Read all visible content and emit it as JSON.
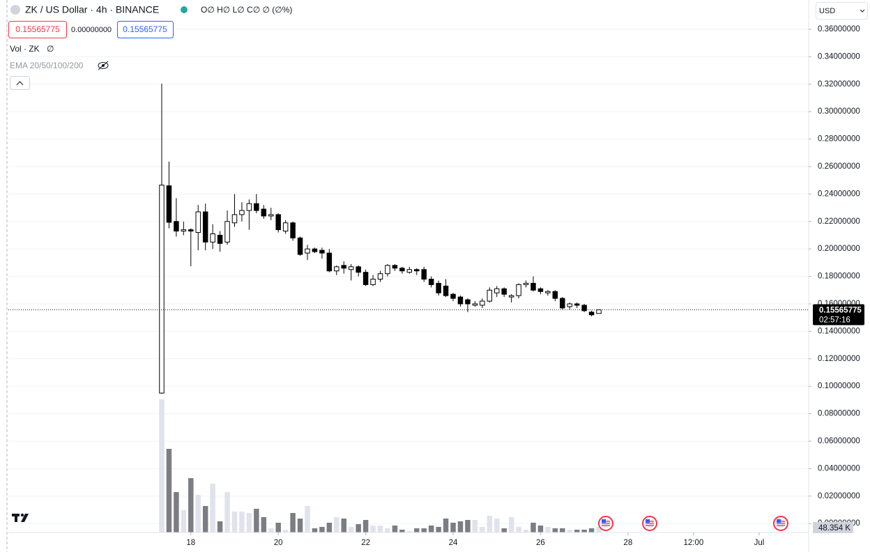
{
  "header": {
    "symbol": "ZK / US Dollar · 4h · BINANCE",
    "ohlc": "O∅ H∅ L∅ C∅ ∅ (∅%)",
    "spread": "0.00000000",
    "volume_title": "Vol · ZK",
    "volume_value": "∅",
    "indicator": "EMA 20/50/100/200",
    "currency": "USD",
    "countdown": "02:57:16",
    "volume_label": "48.354 K"
  },
  "chart_data": {
    "type": "candlestick",
    "last_price": 0.15565775,
    "x": [
      0,
      1,
      2,
      3,
      4,
      5,
      6,
      7,
      8,
      9,
      10,
      11,
      12,
      13,
      14,
      15,
      16,
      17,
      18,
      19,
      20,
      21,
      22,
      23,
      24,
      25,
      26,
      27,
      28,
      29,
      30,
      31,
      32,
      33,
      34,
      35,
      36,
      37,
      38,
      39,
      40,
      41,
      42,
      43,
      44,
      45,
      46,
      47,
      48,
      49,
      50,
      51,
      52,
      53,
      54,
      55,
      56,
      57,
      58,
      59,
      60
    ],
    "open": [
      0.095,
      0.246,
      0.22,
      0.213,
      0.214,
      0.212,
      0.227,
      0.205,
      0.21,
      0.205,
      0.219,
      0.225,
      0.228,
      0.233,
      0.229,
      0.224,
      0.225,
      0.213,
      0.219,
      0.208,
      0.197,
      0.2,
      0.199,
      0.197,
      0.184,
      0.188,
      0.185,
      0.187,
      0.183,
      0.174,
      0.178,
      0.182,
      0.188,
      0.186,
      0.183,
      0.185,
      0.185,
      0.178,
      0.175,
      0.173,
      0.167,
      0.165,
      0.163,
      0.159,
      0.159,
      0.162,
      0.168,
      0.171,
      0.165,
      0.166,
      0.174,
      0.175,
      0.171,
      0.168,
      0.169,
      0.164,
      0.158,
      0.16,
      0.159,
      0.154,
      0.153
    ],
    "high": [
      0.3204,
      0.2636,
      0.237,
      0.22,
      0.215,
      0.232,
      0.233,
      0.218,
      0.213,
      0.228,
      0.24,
      0.234,
      0.236,
      0.24,
      0.232,
      0.23,
      0.226,
      0.221,
      0.22,
      0.209,
      0.203,
      0.201,
      0.201,
      0.2,
      0.188,
      0.191,
      0.189,
      0.188,
      0.185,
      0.181,
      0.184,
      0.189,
      0.189,
      0.187,
      0.187,
      0.186,
      0.187,
      0.18,
      0.177,
      0.178,
      0.168,
      0.166,
      0.164,
      0.162,
      0.164,
      0.172,
      0.173,
      0.172,
      0.167,
      0.175,
      0.177,
      0.18,
      0.172,
      0.17,
      0.17,
      0.165,
      0.161,
      0.161,
      0.16,
      0.155,
      0.1558
    ],
    "low": [
      0.0945,
      0.215,
      0.209,
      0.21,
      0.1874,
      0.199,
      0.199,
      0.2,
      0.198,
      0.203,
      0.216,
      0.22,
      0.214,
      0.226,
      0.222,
      0.221,
      0.212,
      0.211,
      0.206,
      0.195,
      0.192,
      0.197,
      0.193,
      0.183,
      0.181,
      0.182,
      0.177,
      0.18,
      0.173,
      0.173,
      0.176,
      0.18,
      0.184,
      0.182,
      0.182,
      0.181,
      0.176,
      0.172,
      0.166,
      0.165,
      0.162,
      0.158,
      0.154,
      0.158,
      0.157,
      0.161,
      0.165,
      0.165,
      0.161,
      0.164,
      0.172,
      0.169,
      0.167,
      0.166,
      0.162,
      0.156,
      0.156,
      0.157,
      0.154,
      0.151,
      0.153
    ],
    "close": [
      0.2465,
      0.2194,
      0.213,
      0.214,
      0.213,
      0.227,
      0.205,
      0.211,
      0.204,
      0.22,
      0.225,
      0.228,
      0.233,
      0.228,
      0.224,
      0.225,
      0.214,
      0.219,
      0.208,
      0.196,
      0.2,
      0.198,
      0.197,
      0.184,
      0.187,
      0.186,
      0.187,
      0.183,
      0.174,
      0.178,
      0.182,
      0.188,
      0.186,
      0.184,
      0.185,
      0.184,
      0.178,
      0.174,
      0.168,
      0.166,
      0.164,
      0.16,
      0.16,
      0.16,
      0.162,
      0.17,
      0.171,
      0.167,
      0.166,
      0.174,
      0.175,
      0.17,
      0.169,
      0.169,
      0.164,
      0.157,
      0.16,
      0.159,
      0.155,
      0.152,
      0.15565775
    ],
    "volume": [
      1146,
      720,
      348,
      192,
      468,
      324,
      228,
      420,
      96,
      348,
      180,
      180,
      168,
      204,
      132,
      36,
      84,
      24,
      168,
      120,
      228,
      36,
      48,
      84,
      132,
      120,
      48,
      72,
      108,
      60,
      60,
      36,
      60,
      24,
      12,
      36,
      36,
      60,
      48,
      120,
      84,
      96,
      108,
      108,
      48,
      144,
      120,
      36,
      132,
      48,
      24,
      84,
      60,
      48,
      36,
      36,
      24,
      24,
      24,
      36,
      48.354
    ],
    "up_color": "#ffffff",
    "down_color": "#000000",
    "border_color": "#000000",
    "volume_up_color": "#e0e3eb",
    "volume_down_color": "#7b7d83",
    "xlim": [
      -21.05,
      88.8
    ],
    "xticks": [
      {
        "value": 4,
        "label": "18"
      },
      {
        "value": 16,
        "label": "20"
      },
      {
        "value": 28,
        "label": "22"
      },
      {
        "value": 40,
        "label": "24"
      },
      {
        "value": 52,
        "label": "26"
      },
      {
        "value": 64,
        "label": "28"
      },
      {
        "value": 73,
        "label": "12:00"
      },
      {
        "value": 82,
        "label": "Jul"
      }
    ],
    "ylim": [
      -0.0065,
      0.3813
    ],
    "yticks": [
      {
        "value": 0,
        "label": "0.00000000"
      },
      {
        "value": 0.02,
        "label": "0.02000000"
      },
      {
        "value": 0.04,
        "label": "0.04000000"
      },
      {
        "value": 0.06,
        "label": "0.06000000"
      },
      {
        "value": 0.08,
        "label": "0.08000000"
      },
      {
        "value": 0.1,
        "label": "0.10000000"
      },
      {
        "value": 0.12,
        "label": "0.12000000"
      },
      {
        "value": 0.14,
        "label": "0.14000000"
      },
      {
        "value": 0.16,
        "label": "0.16000000"
      },
      {
        "value": 0.18,
        "label": "0.18000000"
      },
      {
        "value": 0.2,
        "label": "0.20000000"
      },
      {
        "value": 0.22,
        "label": "0.22000000"
      },
      {
        "value": 0.24,
        "label": "0.24000000"
      },
      {
        "value": 0.26,
        "label": "0.26000000"
      },
      {
        "value": 0.28,
        "label": "0.28000000"
      },
      {
        "value": 0.3,
        "label": "0.30000000"
      },
      {
        "value": 0.32,
        "label": "0.32000000"
      },
      {
        "value": 0.34,
        "label": "0.34000000"
      },
      {
        "value": 0.36,
        "label": "0.36000000"
      }
    ],
    "grid": true
  }
}
